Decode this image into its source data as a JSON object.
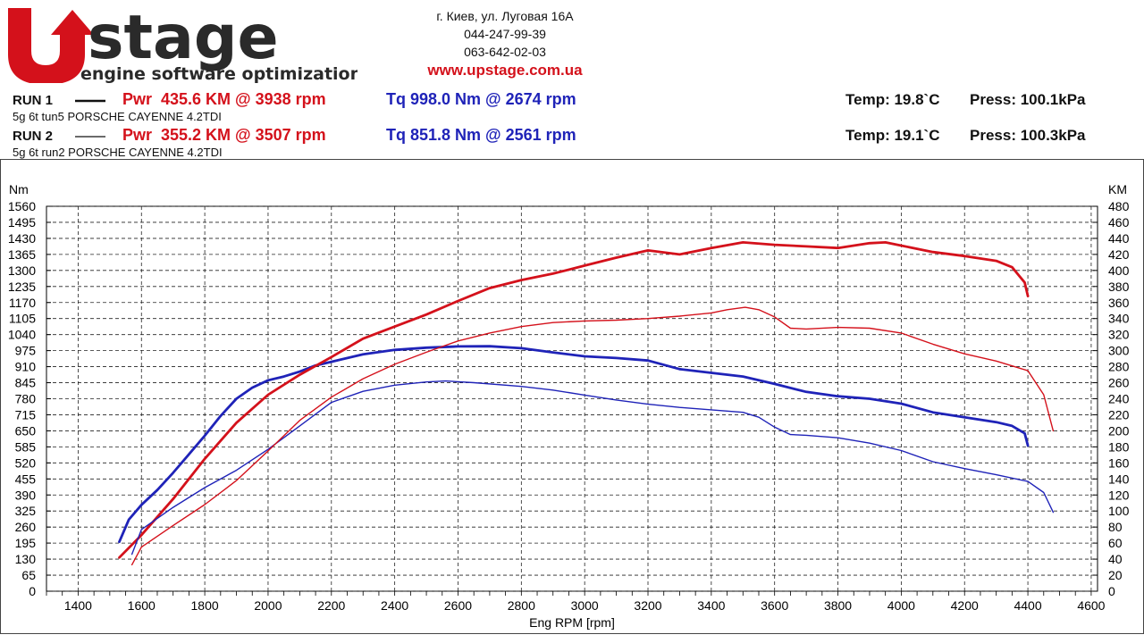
{
  "brand": {
    "logo_text": "stage",
    "tagline": "engine software optimization",
    "colors": {
      "red": "#d4111b",
      "dark": "#2a2a2a"
    }
  },
  "contact": {
    "address": "г. Киев, ул. Луговая 16А",
    "phone1": "044-247-99-39",
    "phone2": "063-642-02-03",
    "website": "www.upstage.com.ua"
  },
  "runs": [
    {
      "label": "RUN 1",
      "legend_style": "solid-thick",
      "power": "Pwr  435.6 KM @ 3938 rpm",
      "torque": "Tq 998.0 Nm @ 2674 rpm",
      "temp": "Temp: 19.8`C",
      "press": "Press: 100.1kPa",
      "description": "5g 6t tun5 PORSCHE CAYENNE 4.2TDI"
    },
    {
      "label": "RUN 2",
      "legend_style": "solid-thin",
      "power": "Pwr  355.2 KM @ 3507 rpm",
      "torque": "Tq 851.8 Nm @ 2561 rpm",
      "temp": "Temp: 19.1`C",
      "press": "Press: 100.3kPa",
      "description": "5g 6t run2 PORSCHE CAYENNE 4.2TDI"
    }
  ],
  "chart_data": {
    "type": "line",
    "xlabel": "Eng RPM [rpm]",
    "ylabel_left": "Nm",
    "ylabel_right": "KM",
    "xlim": [
      1300,
      4620
    ],
    "x_ticks": [
      1400,
      1600,
      1800,
      2000,
      2200,
      2400,
      2600,
      2800,
      3000,
      3200,
      3400,
      3600,
      3800,
      4000,
      4200,
      4400,
      4600
    ],
    "ylim_left": [
      0,
      1560
    ],
    "y_ticks_left": [
      0,
      65,
      130,
      195,
      260,
      325,
      390,
      455,
      520,
      585,
      650,
      715,
      780,
      845,
      910,
      975,
      1040,
      1105,
      1170,
      1235,
      1300,
      1365,
      1430,
      1495,
      1560
    ],
    "ylim_right": [
      0,
      480
    ],
    "y_ticks_right": [
      0,
      20,
      40,
      60,
      80,
      100,
      120,
      140,
      160,
      180,
      200,
      220,
      240,
      260,
      280,
      300,
      320,
      340,
      360,
      380,
      400,
      420,
      440,
      460,
      480
    ],
    "grid": true,
    "series": [
      {
        "name": "RUN 1",
        "quantity": "torque",
        "axis": "left",
        "color": "#1f23b8",
        "width": "thick",
        "x": [
          1530,
          1560,
          1600,
          1650,
          1700,
          1750,
          1800,
          1850,
          1900,
          1950,
          2000,
          2050,
          2100,
          2150,
          2200,
          2300,
          2400,
          2500,
          2600,
          2700,
          2800,
          2900,
          3000,
          3100,
          3200,
          3300,
          3400,
          3500,
          3600,
          3700,
          3800,
          3900,
          4000,
          4100,
          4200,
          4300,
          4350,
          4390,
          4400
        ],
        "y": [
          200,
          290,
          350,
          410,
          480,
          555,
          630,
          710,
          780,
          825,
          855,
          870,
          890,
          915,
          930,
          960,
          978,
          987,
          992,
          993,
          985,
          968,
          952,
          945,
          935,
          900,
          885,
          870,
          840,
          808,
          790,
          780,
          760,
          725,
          705,
          685,
          670,
          640,
          590
        ]
      },
      {
        "name": "RUN 1",
        "quantity": "power",
        "axis": "right",
        "color": "#d4111b",
        "width": "thick",
        "x": [
          1530,
          1600,
          1700,
          1800,
          1900,
          2000,
          2100,
          2200,
          2300,
          2400,
          2500,
          2600,
          2700,
          2800,
          2900,
          3000,
          3100,
          3200,
          3300,
          3400,
          3500,
          3600,
          3700,
          3800,
          3900,
          3950,
          4000,
          4100,
          4200,
          4300,
          4350,
          4390,
          4400
        ],
        "y": [
          42,
          70,
          115,
          165,
          210,
          245,
          270,
          292,
          315,
          330,
          345,
          362,
          378,
          388,
          396,
          406,
          416,
          425,
          420,
          428,
          435,
          432,
          430,
          428,
          434,
          435,
          431,
          423,
          418,
          412,
          404,
          385,
          368
        ]
      },
      {
        "name": "RUN 2",
        "quantity": "torque",
        "axis": "left",
        "color": "#1f23b8",
        "width": "thin",
        "x": [
          1570,
          1600,
          1700,
          1800,
          1900,
          2000,
          2100,
          2200,
          2300,
          2400,
          2500,
          2561,
          2650,
          2800,
          2900,
          3000,
          3100,
          3200,
          3300,
          3400,
          3500,
          3550,
          3600,
          3650,
          3700,
          3800,
          3900,
          4000,
          4100,
          4200,
          4300,
          4400,
          4450,
          4480
        ],
        "y": [
          150,
          250,
          340,
          420,
          490,
          575,
          670,
          765,
          810,
          835,
          848,
          852,
          845,
          830,
          815,
          795,
          775,
          758,
          745,
          735,
          725,
          705,
          665,
          635,
          632,
          622,
          600,
          570,
          525,
          497,
          472,
          445,
          400,
          320
        ]
      },
      {
        "name": "RUN 2",
        "quantity": "power",
        "axis": "right",
        "color": "#d4111b",
        "width": "thin",
        "x": [
          1570,
          1600,
          1700,
          1800,
          1900,
          2000,
          2100,
          2200,
          2300,
          2400,
          2500,
          2600,
          2700,
          2800,
          2900,
          3000,
          3100,
          3200,
          3300,
          3400,
          3450,
          3507,
          3550,
          3600,
          3650,
          3700,
          3800,
          3900,
          4000,
          4100,
          4200,
          4300,
          4350,
          4400,
          4450,
          4480
        ],
        "y": [
          33,
          55,
          82,
          108,
          138,
          175,
          213,
          242,
          265,
          283,
          298,
          312,
          322,
          330,
          335,
          337,
          338,
          340,
          343,
          347,
          351,
          354,
          351,
          342,
          328,
          327,
          329,
          328,
          322,
          308,
          296,
          287,
          281,
          275,
          245,
          200
        ]
      }
    ]
  }
}
